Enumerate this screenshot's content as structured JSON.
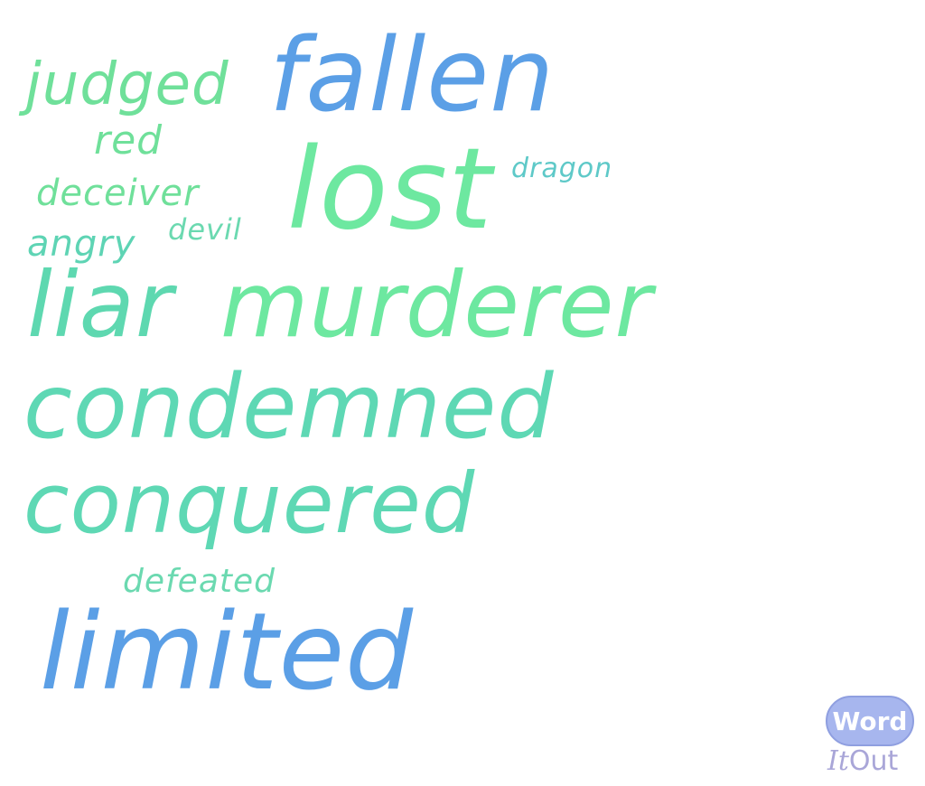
{
  "words": [
    {
      "text": "fallen",
      "color": "#5b9fe6"
    },
    {
      "text": "judged",
      "color": "#6fe09a"
    },
    {
      "text": "red",
      "color": "#6fe09a"
    },
    {
      "text": "lost",
      "color": "#6de8a0"
    },
    {
      "text": "dragon",
      "color": "#5ec9c8"
    },
    {
      "text": "deceiver",
      "color": "#6fe09a"
    },
    {
      "text": "devil",
      "color": "#6bd9b0"
    },
    {
      "text": "angry",
      "color": "#5ed4b4"
    },
    {
      "text": "liar",
      "color": "#5ed8b0"
    },
    {
      "text": "murderer",
      "color": "#6de8a0"
    },
    {
      "text": "condemned",
      "color": "#5ed8b4"
    },
    {
      "text": "conquered",
      "color": "#5ed8b4"
    },
    {
      "text": "defeated",
      "color": "#6bd9b0"
    },
    {
      "text": "limited",
      "color": "#5b9fe6"
    }
  ],
  "logo": {
    "badge_text": "Word",
    "it_text": "It",
    "out_text": "Out"
  }
}
